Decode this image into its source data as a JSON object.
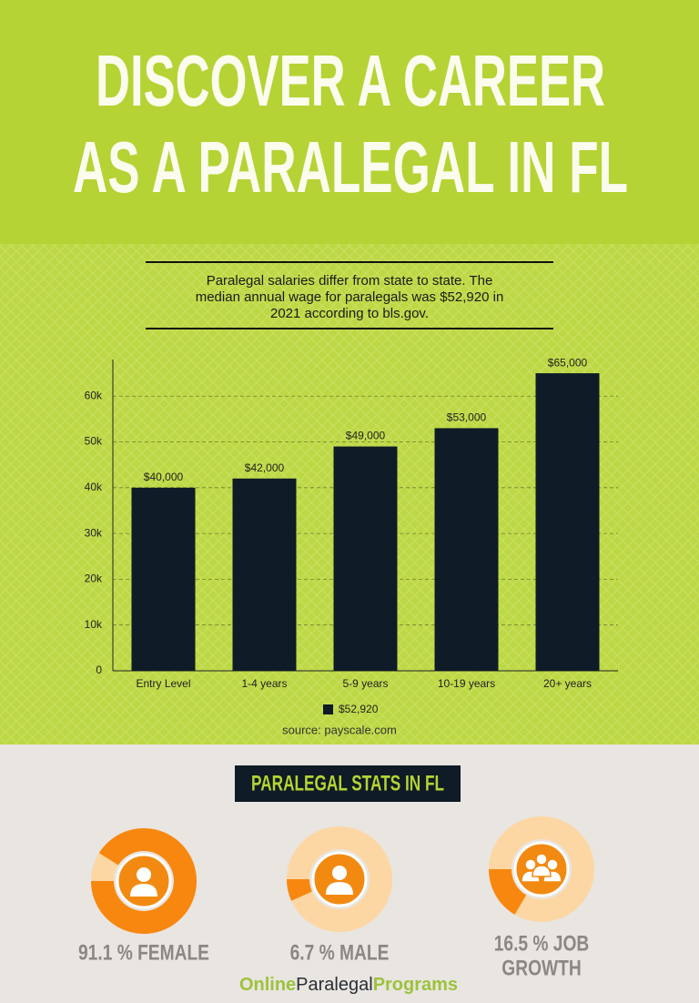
{
  "header": {
    "title": [
      "DISCOVER A CAREER",
      "AS A PARALEGAL IN FL"
    ]
  },
  "chart_data": {
    "type": "bar",
    "subtitle": [
      "Paralegal salaries differ from state to state. The",
      "median annual wage for paralegals was $52,920 in",
      "2021 according to bls.gov."
    ],
    "categories": [
      "Entry Level",
      "1-4 years",
      "5-9 years",
      "10-19 years",
      "20+ years"
    ],
    "series": [
      {
        "name": "$52,920",
        "color": "#0f1b26",
        "values": [
          40000,
          42000,
          49000,
          53000,
          65000
        ],
        "value_labels": [
          "$40,000",
          "$42,000",
          "$49,000",
          "$53,000",
          "$65,000"
        ]
      }
    ],
    "ylim": [
      0,
      68000
    ],
    "yticks": [
      0,
      {
        "value": 10000,
        "label": "10k"
      },
      {
        "value": 20000,
        "label": "20k"
      },
      {
        "value": 30000,
        "label": "30k"
      },
      {
        "value": 40000,
        "label": "40k"
      },
      {
        "value": 50000,
        "label": "50k"
      },
      {
        "value": 60000,
        "label": "60k"
      }
    ],
    "grid": true,
    "source": "source: payscale.com"
  },
  "stats": {
    "title": "PARALEGAL STATS IN FL",
    "items": [
      {
        "value": 91.1,
        "label": [
          "91.1 % FEMALE"
        ]
      },
      {
        "value": 6.7,
        "label": [
          "6.7 % MALE"
        ]
      },
      {
        "value": 16.5,
        "label": [
          "16.5 % JOB",
          "GROWTH"
        ]
      }
    ]
  },
  "footer": {
    "brand": [
      "Online",
      "Paralegal",
      "Programs"
    ]
  }
}
